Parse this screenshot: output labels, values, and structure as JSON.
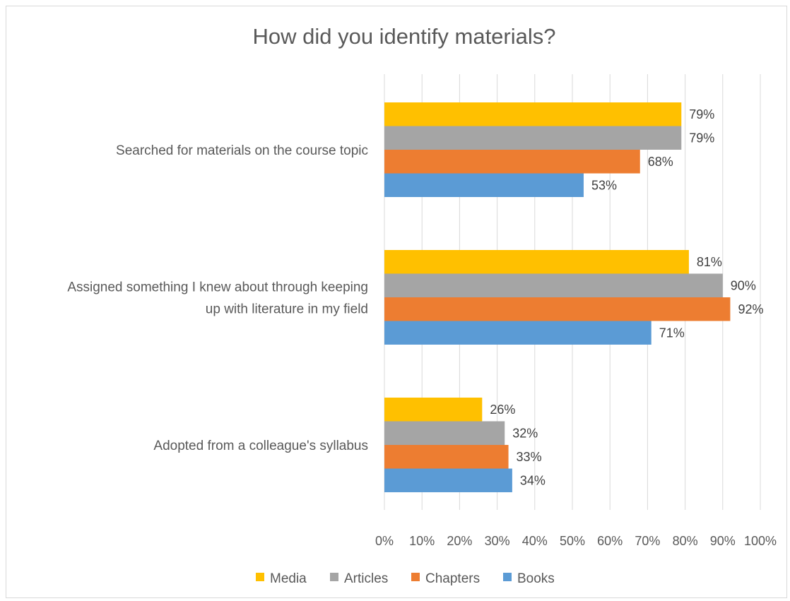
{
  "chart_data": {
    "type": "bar",
    "orientation": "horizontal",
    "title": "How did you identify materials?",
    "categories": [
      [
        "Searched for materials on the course topic"
      ],
      [
        "Assigned something I knew about through keeping",
        "up with literature in my field"
      ],
      [
        "Adopted from a colleague's syllabus"
      ]
    ],
    "series": [
      {
        "name": "Media",
        "color": "#FFC000",
        "values": [
          79,
          81,
          26
        ]
      },
      {
        "name": "Articles",
        "color": "#A5A5A5",
        "values": [
          79,
          90,
          32
        ]
      },
      {
        "name": "Chapters",
        "color": "#ED7D31",
        "values": [
          68,
          92,
          33
        ]
      },
      {
        "name": "Books",
        "color": "#5B9BD5",
        "values": [
          53,
          71,
          34
        ]
      }
    ],
    "value_format": "percent",
    "xlim": [
      0,
      100
    ],
    "x_ticks": [
      "0%",
      "10%",
      "20%",
      "30%",
      "40%",
      "50%",
      "60%",
      "70%",
      "80%",
      "90%",
      "100%"
    ],
    "grid": "vertical",
    "legend": "bottom",
    "data_labels": true
  }
}
